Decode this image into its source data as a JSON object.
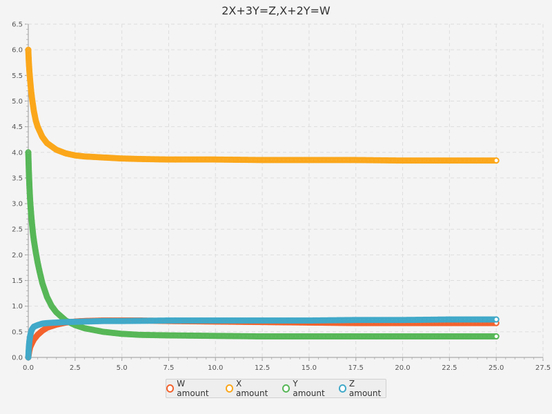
{
  "colors": {
    "background": "#f4f4f4",
    "grid": "#dddddd",
    "W": "#f3622d",
    "X": "#fba71b",
    "Y": "#57b757",
    "Z": "#41a9c9"
  },
  "chart_data": {
    "type": "scatter",
    "title": "2X+3Y=Z,X+2Y=W",
    "xlabel": "",
    "ylabel": "",
    "xlim": [
      0,
      27.5
    ],
    "ylim": [
      0,
      6.5
    ],
    "x_ticks": [
      "0.0",
      "2.5",
      "5.0",
      "7.5",
      "10.0",
      "12.5",
      "15.0",
      "17.5",
      "20.0",
      "22.5",
      "25.0",
      "27.5"
    ],
    "y_ticks": [
      "0.0",
      "0.5",
      "1.0",
      "1.5",
      "2.0",
      "2.5",
      "3.0",
      "3.5",
      "4.0",
      "4.5",
      "5.0",
      "5.5",
      "6.0",
      "6.5"
    ],
    "grid": true,
    "legend_position": "bottom",
    "series": [
      {
        "name": "W amount",
        "color_key": "W",
        "points": [
          [
            0.0,
            0.0
          ],
          [
            0.05,
            0.12
          ],
          [
            0.1,
            0.2
          ],
          [
            0.2,
            0.28
          ],
          [
            0.3,
            0.35
          ],
          [
            0.5,
            0.44
          ],
          [
            0.75,
            0.52
          ],
          [
            1.0,
            0.58
          ],
          [
            1.5,
            0.64
          ],
          [
            2.0,
            0.68
          ],
          [
            2.5,
            0.7
          ],
          [
            3.0,
            0.71
          ],
          [
            4.0,
            0.72
          ],
          [
            5.0,
            0.72
          ],
          [
            6.0,
            0.72
          ],
          [
            7.5,
            0.71
          ],
          [
            10.0,
            0.7
          ],
          [
            12.5,
            0.69
          ],
          [
            15.0,
            0.68
          ],
          [
            17.5,
            0.67
          ],
          [
            20.0,
            0.67
          ],
          [
            22.5,
            0.67
          ],
          [
            25.0,
            0.67
          ]
        ]
      },
      {
        "name": "X amount",
        "color_key": "X",
        "points": [
          [
            0.0,
            6.0
          ],
          [
            0.03,
            5.75
          ],
          [
            0.06,
            5.58
          ],
          [
            0.1,
            5.4
          ],
          [
            0.15,
            5.2
          ],
          [
            0.2,
            5.05
          ],
          [
            0.3,
            4.8
          ],
          [
            0.4,
            4.62
          ],
          [
            0.5,
            4.5
          ],
          [
            0.75,
            4.3
          ],
          [
            1.0,
            4.18
          ],
          [
            1.5,
            4.05
          ],
          [
            2.0,
            3.98
          ],
          [
            2.5,
            3.94
          ],
          [
            3.0,
            3.92
          ],
          [
            4.0,
            3.9
          ],
          [
            5.0,
            3.88
          ],
          [
            6.0,
            3.87
          ],
          [
            7.5,
            3.86
          ],
          [
            10.0,
            3.86
          ],
          [
            12.5,
            3.85
          ],
          [
            15.0,
            3.85
          ],
          [
            17.5,
            3.85
          ],
          [
            20.0,
            3.84
          ],
          [
            22.5,
            3.84
          ],
          [
            25.0,
            3.84
          ]
        ]
      },
      {
        "name": "Y amount",
        "color_key": "Y",
        "points": [
          [
            0.0,
            4.0
          ],
          [
            0.03,
            3.62
          ],
          [
            0.06,
            3.35
          ],
          [
            0.09,
            3.12
          ],
          [
            0.12,
            2.95
          ],
          [
            0.15,
            2.8
          ],
          [
            0.2,
            2.6
          ],
          [
            0.25,
            2.42
          ],
          [
            0.3,
            2.28
          ],
          [
            0.4,
            2.05
          ],
          [
            0.5,
            1.85
          ],
          [
            0.6,
            1.68
          ],
          [
            0.75,
            1.45
          ],
          [
            1.0,
            1.18
          ],
          [
            1.25,
            1.0
          ],
          [
            1.5,
            0.88
          ],
          [
            2.0,
            0.72
          ],
          [
            2.5,
            0.63
          ],
          [
            3.0,
            0.57
          ],
          [
            4.0,
            0.5
          ],
          [
            5.0,
            0.46
          ],
          [
            6.0,
            0.44
          ],
          [
            7.5,
            0.43
          ],
          [
            10.0,
            0.42
          ],
          [
            12.5,
            0.41
          ],
          [
            15.0,
            0.41
          ],
          [
            17.5,
            0.41
          ],
          [
            20.0,
            0.41
          ],
          [
            22.5,
            0.41
          ],
          [
            25.0,
            0.41
          ]
        ]
      },
      {
        "name": "Z amount",
        "color_key": "Z",
        "points": [
          [
            0.0,
            0.0
          ],
          [
            0.03,
            0.2
          ],
          [
            0.06,
            0.32
          ],
          [
            0.1,
            0.42
          ],
          [
            0.15,
            0.5
          ],
          [
            0.2,
            0.55
          ],
          [
            0.3,
            0.6
          ],
          [
            0.5,
            0.63
          ],
          [
            0.75,
            0.66
          ],
          [
            1.0,
            0.67
          ],
          [
            1.5,
            0.68
          ],
          [
            2.0,
            0.69
          ],
          [
            3.0,
            0.7
          ],
          [
            4.0,
            0.71
          ],
          [
            5.0,
            0.71
          ],
          [
            7.5,
            0.72
          ],
          [
            10.0,
            0.72
          ],
          [
            12.5,
            0.72
          ],
          [
            15.0,
            0.72
          ],
          [
            17.5,
            0.73
          ],
          [
            20.0,
            0.73
          ],
          [
            22.5,
            0.74
          ],
          [
            25.0,
            0.74
          ]
        ]
      }
    ]
  }
}
